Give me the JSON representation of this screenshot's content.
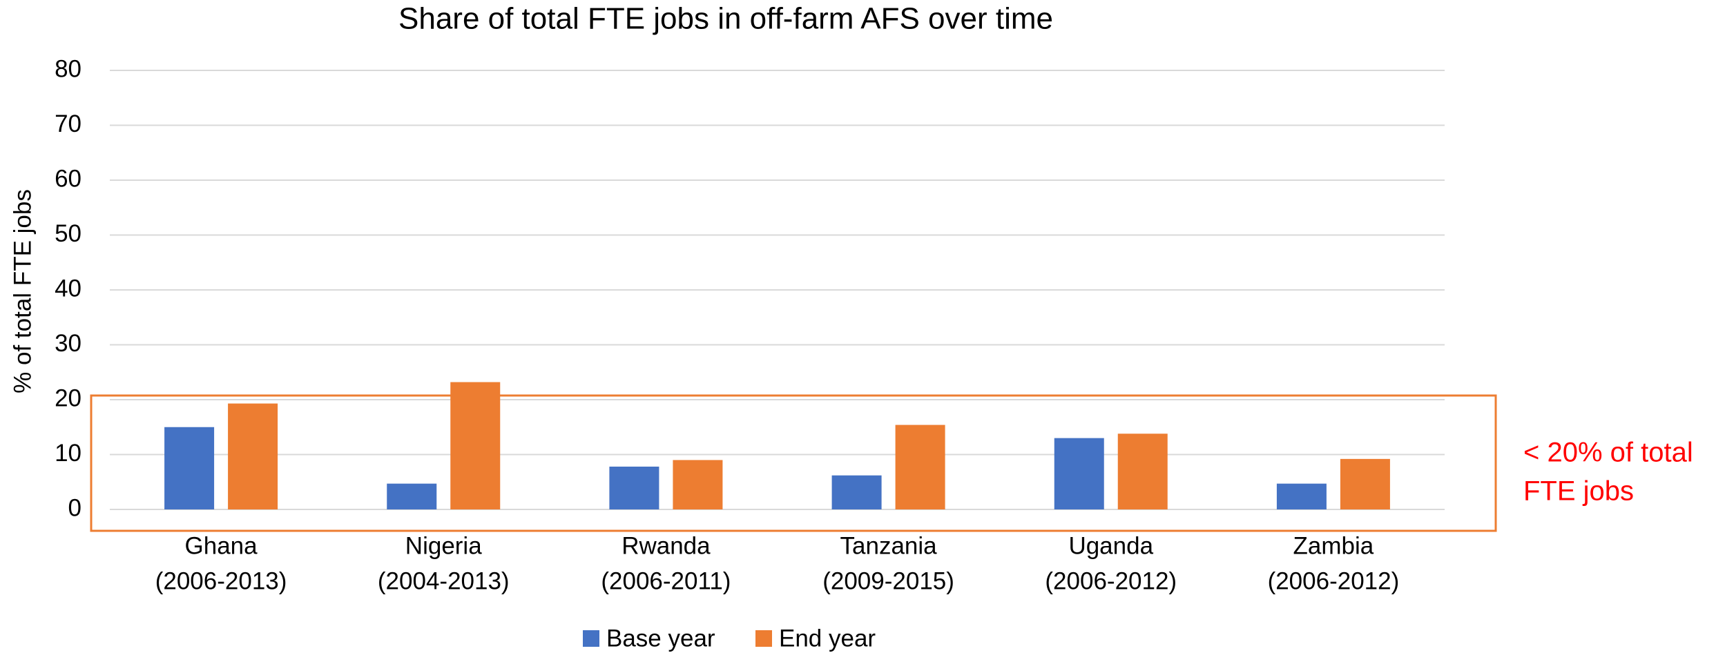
{
  "chart_data": {
    "type": "bar",
    "title": "Share of total FTE jobs in off-farm AFS over time",
    "y_axis_label": "% of total FTE jobs",
    "categories": [
      [
        "Ghana",
        "(2006-2013)"
      ],
      [
        "Nigeria",
        "(2004-2013)"
      ],
      [
        "Rwanda",
        "(2006-2011)"
      ],
      [
        "Tanzania",
        "(2009-2015)"
      ],
      [
        "Uganda",
        "(2006-2012)"
      ],
      [
        "Zambia",
        "(2006-2012)"
      ]
    ],
    "series": [
      {
        "name": "Base year",
        "color": "#4472c4",
        "values": [
          15,
          4.7,
          7.8,
          6.2,
          13,
          4.7
        ]
      },
      {
        "name": "End year",
        "color": "#ed7d31",
        "values": [
          19.3,
          23.2,
          9,
          15.4,
          13.8,
          9.2
        ]
      }
    ],
    "ylim": [
      0,
      80
    ],
    "yticks": [
      0,
      10,
      20,
      30,
      40,
      50,
      60,
      70,
      80
    ],
    "grid": true,
    "legend": "bottom",
    "annotation": [
      "< 20% of total",
      "FTE jobs"
    ]
  }
}
